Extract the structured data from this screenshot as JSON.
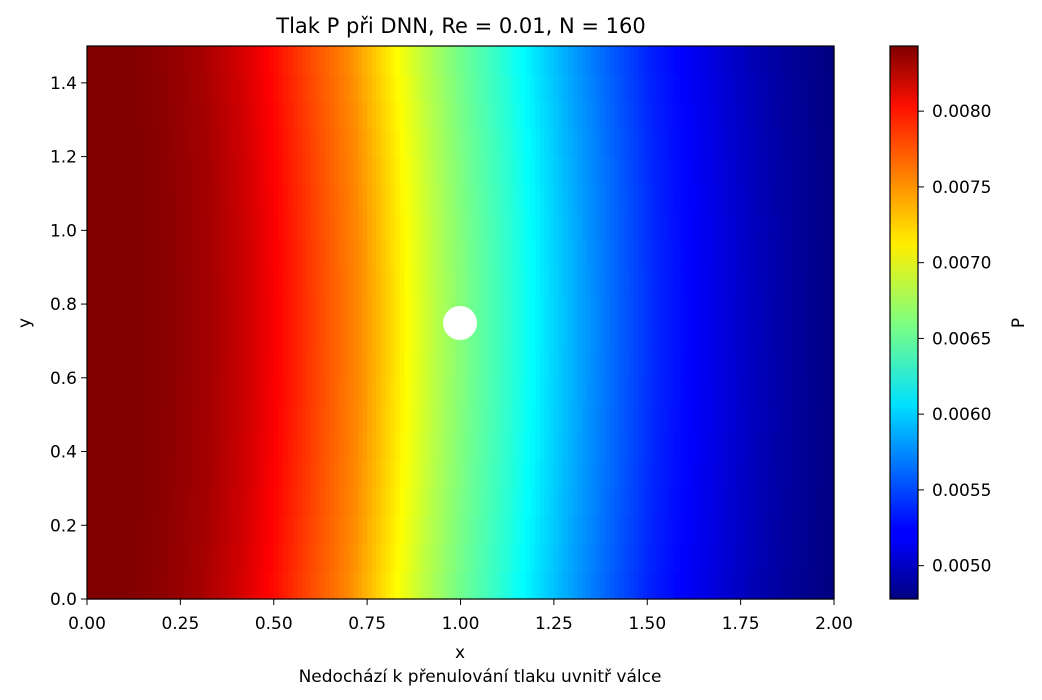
{
  "chart_data": {
    "type": "heatmap",
    "title": "Tlak P při DNN, Re = 0.01, N = 160",
    "xlabel": "x",
    "ylabel": "y",
    "footnote": "Nedochází k přenulování tlaku uvnitř válce",
    "xlim": [
      0.0,
      2.0
    ],
    "ylim": [
      0.0,
      1.5
    ],
    "xticks": [
      "0.00",
      "0.25",
      "0.50",
      "0.75",
      "1.00",
      "1.25",
      "1.50",
      "1.75",
      "2.00"
    ],
    "yticks": [
      "0.0",
      "0.2",
      "0.4",
      "0.6",
      "0.8",
      "1.0",
      "1.2",
      "1.4"
    ],
    "colormap": "jet",
    "colorbar": {
      "label": "P",
      "range": [
        0.00478,
        0.00843
      ],
      "ticks": [
        "0.0050",
        "0.0055",
        "0.0060",
        "0.0065",
        "0.0070",
        "0.0075",
        "0.0080"
      ]
    },
    "obstacle": {
      "shape": "circle",
      "center_x": 1.0,
      "center_y": 0.75,
      "radius": 0.045,
      "value": "none"
    },
    "pressure_profile_x": [
      0.0,
      0.1,
      0.2,
      0.3,
      0.4,
      0.5,
      0.6,
      0.7,
      0.8,
      0.9,
      1.0,
      1.1,
      1.2,
      1.3,
      1.4,
      1.5,
      1.6,
      1.7,
      1.8,
      1.9,
      2.0
    ],
    "pressure_profile_p": [
      0.00843,
      0.00843,
      0.00838,
      0.0083,
      0.00815,
      0.00793,
      0.0077,
      0.00748,
      0.00715,
      0.00682,
      0.00655,
      0.00632,
      0.00605,
      0.0058,
      0.00557,
      0.00536,
      0.00522,
      0.00508,
      0.00495,
      0.00485,
      0.00478
    ]
  }
}
